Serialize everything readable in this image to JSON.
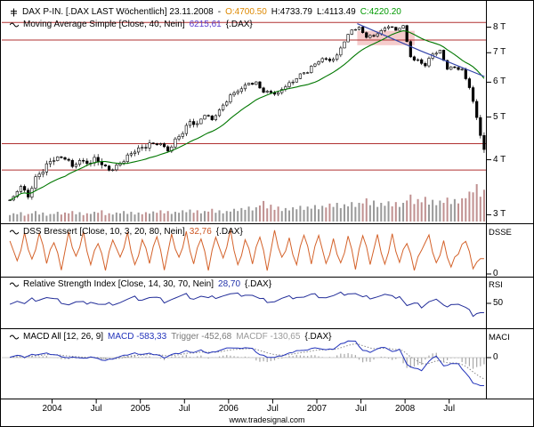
{
  "window": {
    "watermark": "www.tradesignal.com"
  },
  "colors": {
    "background": "#ffffff",
    "candle": "#000000",
    "moving_average": "#007700",
    "trendline_blue": "#3344aa",
    "horizontal_lines_red": "#b03030",
    "dss_line": "#d4622a",
    "rsi_line": "#222d99",
    "macd_line": "#2233bb",
    "macd_trigger": "#888888",
    "macd_histogram": "#a8a8a8",
    "open_value": "#dd8800",
    "close_value": "#009900",
    "ma_value": "#5a3bd0"
  },
  "panels": {
    "price": {
      "title": "DAX P-IN. [.DAX LAST Wöchentlich] 23.11.2008",
      "separator": "-",
      "open": "O:4700.50",
      "high": "H:4733.79",
      "low": "L:4113.49",
      "close": "C:4220.20",
      "ma_label": "Moving Average Simple [Close, 40, Nein]",
      "ma_value": "6215,61",
      "suffix": "{.DAX}"
    },
    "dss": {
      "label": "DSS Bressert [Close, 10, 3, 20, 80, Nein]",
      "value": "32,76",
      "suffix": "{.DAX}",
      "axis_name": "DSSE",
      "tick": "0"
    },
    "rsi": {
      "label": "Relative Strength Index [Close, 14, 30, 70, Nein]",
      "value": "28,70",
      "suffix": "{.DAX}",
      "axis_name": "RSI",
      "tick": "50"
    },
    "macd": {
      "label": "MACD All [12, 26, 9]",
      "macd_value": "MACD -583,33",
      "trigger_value": "Trigger -452,68",
      "macdf_value": "MACDF -130,65",
      "suffix": "{.DAX}",
      "axis_name": "MACI",
      "tick": "0"
    }
  },
  "chart_data": {
    "type": "candlestick+indicators",
    "symbol": ".DAX",
    "interval": "weekly",
    "last_date": "23.11.2008",
    "last_ohlc": {
      "open": 4700.5,
      "high": 4733.79,
      "low": 4113.49,
      "close": 4220.2
    },
    "ma40_last": 6215.61,
    "dss_last": 32.76,
    "rsi_last": 28.7,
    "macd_last": {
      "macd": -583.33,
      "trigger": -452.68,
      "macdf": -130.65
    },
    "x_start_month": "2003-07",
    "price_scale": "log",
    "price_ylim": [
      2900,
      8600
    ],
    "price_ticks": {
      "labels": [
        "8 T",
        "7 T",
        "6 T",
        "5 T",
        "4 T",
        "3 T"
      ],
      "values": [
        8000,
        7000,
        6000,
        5000,
        4000,
        3000
      ]
    },
    "x_ticks": {
      "labels": [
        "2004",
        "Jul",
        "2005",
        "Jul",
        "2006",
        "Jul",
        "2007",
        "Jul",
        "2008",
        "Jul"
      ],
      "month_index": [
        6,
        12,
        18,
        24,
        30,
        36,
        42,
        48,
        54,
        60
      ]
    },
    "monthly_closes": [
      3300,
      3480,
      3290,
      3660,
      3750,
      3965,
      4060,
      4010,
      3860,
      3985,
      3920,
      4050,
      3895,
      3785,
      3890,
      3960,
      4130,
      4256,
      4254,
      4350,
      4348,
      4184,
      4460,
      4586,
      4886,
      4830,
      5044,
      4929,
      5193,
      5408,
      5674,
      5796,
      5970,
      6009,
      5692,
      5683,
      5682,
      5859,
      6004,
      6269,
      6309,
      6597,
      6789,
      6715,
      6917,
      7409,
      7883,
      8007,
      7584,
      7638,
      7861,
      8019,
      7870,
      8067,
      6851,
      6748,
      6535,
      6948,
      7096,
      6418,
      6479,
      6422,
      5831,
      4987,
      4220
    ],
    "volume_rel": [
      0.22,
      0.25,
      0.2,
      0.28,
      0.24,
      0.2,
      0.26,
      0.24,
      0.28,
      0.25,
      0.22,
      0.26,
      0.3,
      0.22,
      0.24,
      0.28,
      0.26,
      0.24,
      0.25,
      0.27,
      0.3,
      0.28,
      0.26,
      0.3,
      0.32,
      0.3,
      0.28,
      0.34,
      0.3,
      0.28,
      0.34,
      0.36,
      0.4,
      0.38,
      0.55,
      0.45,
      0.4,
      0.36,
      0.38,
      0.42,
      0.4,
      0.44,
      0.42,
      0.48,
      0.5,
      0.46,
      0.52,
      0.5,
      0.62,
      0.56,
      0.5,
      0.54,
      0.52,
      0.5,
      0.72,
      0.6,
      0.66,
      0.58,
      0.56,
      0.64,
      0.6,
      0.62,
      0.8,
      1.0,
      0.85
    ],
    "dss": [
      78,
      22,
      85,
      30,
      88,
      25,
      72,
      15,
      84,
      34,
      90,
      20,
      68,
      12,
      80,
      30,
      86,
      18,
      74,
      25,
      85,
      15,
      80,
      32,
      90,
      22,
      78,
      12,
      86,
      28,
      92,
      18,
      74,
      24,
      84,
      14,
      88,
      32,
      76,
      20,
      86,
      26,
      90,
      16,
      72,
      22,
      82,
      12,
      87,
      27,
      79,
      17,
      85,
      25,
      68,
      12,
      58,
      78,
      20,
      70,
      15,
      45,
      75,
      18,
      33
    ],
    "rsi": [
      52,
      56,
      48,
      58,
      60,
      63,
      58,
      54,
      48,
      52,
      50,
      55,
      48,
      45,
      50,
      53,
      58,
      62,
      60,
      63,
      61,
      55,
      60,
      64,
      68,
      62,
      66,
      60,
      65,
      68,
      70,
      69,
      71,
      68,
      58,
      56,
      55,
      60,
      63,
      66,
      64,
      68,
      67,
      64,
      66,
      71,
      74,
      72,
      62,
      64,
      66,
      69,
      63,
      68,
      45,
      48,
      44,
      55,
      58,
      42,
      50,
      48,
      38,
      25,
      29
    ],
    "macd": [
      20,
      45,
      10,
      60,
      70,
      85,
      60,
      30,
      -10,
      10,
      -20,
      20,
      -30,
      -60,
      -20,
      20,
      60,
      90,
      70,
      80,
      60,
      0,
      60,
      90,
      140,
      110,
      150,
      90,
      130,
      170,
      210,
      190,
      210,
      180,
      60,
      20,
      0,
      40,
      90,
      150,
      140,
      190,
      200,
      160,
      180,
      280,
      350,
      330,
      150,
      120,
      180,
      220,
      120,
      180,
      -150,
      -220,
      -260,
      -80,
      40,
      -180,
      -120,
      -140,
      -320,
      -520,
      -583
    ],
    "hlines": [
      8200,
      7480,
      4350,
      3790
    ],
    "blue_line": [
      [
        47.5,
        8150
      ],
      [
        56.2,
        7060
      ],
      [
        64.8,
        6180
      ]
    ],
    "zone": {
      "m1": 47.5,
      "m2": 55.3,
      "p1": 7280,
      "p2": 7850
    }
  }
}
